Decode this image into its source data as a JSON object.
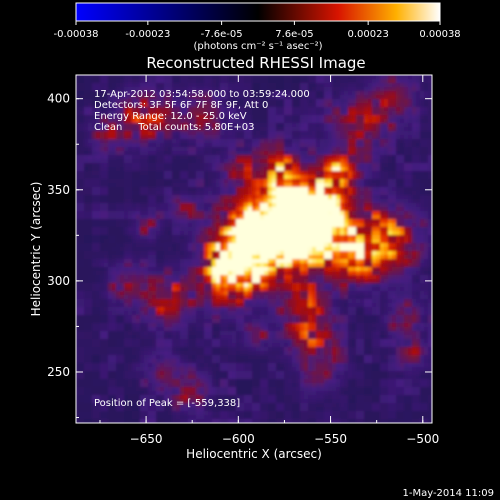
{
  "colorbar": {
    "tick_labels": [
      "-0.00038",
      "-0.00023",
      "-7.6e-05",
      "7.6e-05",
      "0.00023",
      "0.00038"
    ],
    "tick_values": [
      -0.00038,
      -0.00023,
      -7.6e-05,
      7.6e-05,
      0.00023,
      0.00038
    ],
    "unit_text": "(photons cm⁻² s⁻¹ asec⁻²)",
    "colors": [
      "#0000ff",
      "#000000",
      "#ff0000",
      "#ffff00",
      "#ffffff"
    ]
  },
  "chart_data": {
    "type": "heatmap",
    "title": "Reconstructed RHESSI Image",
    "xlabel": "Heliocentric X (arcsec)",
    "ylabel": "Heliocentric Y (arcsec)",
    "xlim": [
      -688,
      -495
    ],
    "ylim": [
      222,
      413
    ],
    "x_ticks": [
      -650,
      -600,
      -550,
      -500
    ],
    "y_ticks": [
      250,
      300,
      350,
      400
    ],
    "annotations": {
      "time_range": "17-Apr-2012 03:54:58.000 to 03:59:24.000",
      "detectors": "Detectors: 3F 5F 6F 7F 8F 9F, Att 0",
      "energy_range": "Energy Range: 12.0 - 25.0 keV",
      "method": "Clean     Total counts: 5.80E+03",
      "peak": "Position of Peak = [-559,338]"
    },
    "peak_position": [
      -559,
      338
    ]
  },
  "footer": {
    "timestamp": "1-May-2014 11:09"
  }
}
